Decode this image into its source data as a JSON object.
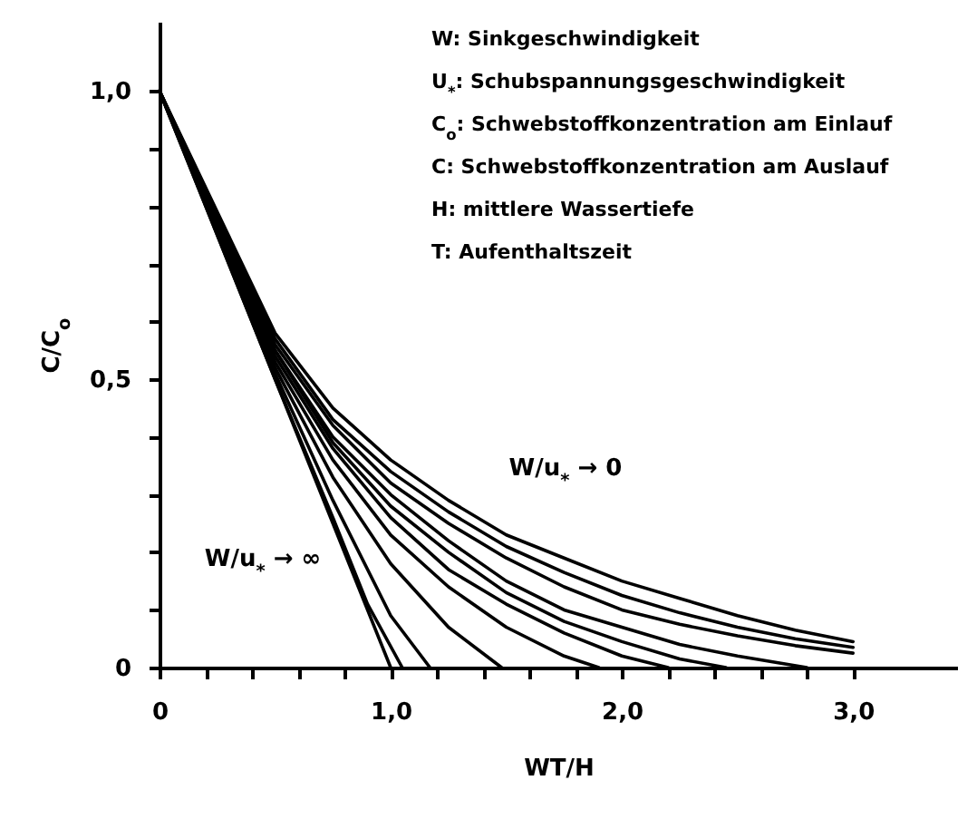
{
  "chart_data": {
    "type": "line",
    "xlabel": "WT/H",
    "ylabel": "C/C$_{o}$",
    "xlim": [
      0,
      3.45
    ],
    "ylim": [
      0,
      1.12
    ],
    "xticks": [
      {
        "value": 0,
        "label": "0"
      },
      {
        "value": 0.2,
        "label": null
      },
      {
        "value": 0.4,
        "label": null
      },
      {
        "value": 0.6,
        "label": null
      },
      {
        "value": 0.8,
        "label": null
      },
      {
        "value": 1.0,
        "label": "1,0"
      },
      {
        "value": 1.2,
        "label": null
      },
      {
        "value": 1.4,
        "label": null
      },
      {
        "value": 1.6,
        "label": null
      },
      {
        "value": 1.8,
        "label": null
      },
      {
        "value": 2.0,
        "label": "2,0"
      },
      {
        "value": 2.2,
        "label": null
      },
      {
        "value": 2.4,
        "label": null
      },
      {
        "value": 2.6,
        "label": null
      },
      {
        "value": 2.8,
        "label": null
      },
      {
        "value": 3.0,
        "label": "3,0"
      }
    ],
    "yticks": [
      {
        "value": 0,
        "label": "0"
      },
      {
        "value": 0.1,
        "label": null
      },
      {
        "value": 0.2,
        "label": null
      },
      {
        "value": 0.3,
        "label": null
      },
      {
        "value": 0.4,
        "label": null
      },
      {
        "value": 0.5,
        "label": "0,5"
      },
      {
        "value": 0.6,
        "label": null
      },
      {
        "value": 0.7,
        "label": null
      },
      {
        "value": 0.8,
        "label": null
      },
      {
        "value": 0.9,
        "label": null
      },
      {
        "value": 1.0,
        "label": "1,0"
      }
    ],
    "grid": false,
    "marker": "none",
    "line_style": "solid",
    "series": [
      {
        "color": "#000000",
        "x": [
          0,
          1.0
        ],
        "values": [
          1,
          0
        ]
      },
      {
        "color": "#000000",
        "x": [
          0,
          0.5,
          0.75,
          0.9,
          1.05
        ],
        "values": [
          1,
          0.5,
          0.26,
          0.11,
          0
        ]
      },
      {
        "color": "#000000",
        "x": [
          0,
          0.5,
          0.75,
          1.0,
          1.17
        ],
        "values": [
          1,
          0.51,
          0.29,
          0.09,
          0
        ]
      },
      {
        "color": "#000000",
        "x": [
          0,
          0.5,
          0.75,
          1.0,
          1.25,
          1.48
        ],
        "values": [
          1,
          0.52,
          0.33,
          0.18,
          0.07,
          0
        ]
      },
      {
        "color": "#000000",
        "x": [
          0,
          0.5,
          0.75,
          1.0,
          1.25,
          1.5,
          1.75,
          1.9
        ],
        "values": [
          1,
          0.53,
          0.36,
          0.23,
          0.14,
          0.07,
          0.02,
          0
        ]
      },
      {
        "color": "#000000",
        "x": [
          0,
          0.5,
          0.75,
          1.0,
          1.25,
          1.5,
          1.75,
          2.0,
          2.2
        ],
        "values": [
          1,
          0.54,
          0.38,
          0.26,
          0.17,
          0.11,
          0.06,
          0.02,
          0
        ]
      },
      {
        "color": "#000000",
        "x": [
          0,
          0.5,
          0.75,
          1.0,
          1.25,
          1.5,
          1.75,
          2.0,
          2.25,
          2.45
        ],
        "values": [
          1,
          0.55,
          0.39,
          0.28,
          0.2,
          0.13,
          0.08,
          0.045,
          0.015,
          0
        ]
      },
      {
        "color": "#000000",
        "x": [
          0,
          0.5,
          0.75,
          1.0,
          1.25,
          1.5,
          1.75,
          2.0,
          2.25,
          2.5,
          2.8
        ],
        "values": [
          1,
          0.55,
          0.4,
          0.3,
          0.22,
          0.15,
          0.1,
          0.07,
          0.04,
          0.02,
          0
        ]
      },
      {
        "color": "#000000",
        "x": [
          0,
          0.5,
          0.75,
          1.0,
          1.25,
          1.5,
          1.75,
          2.0,
          2.25,
          2.5,
          2.75,
          3.0
        ],
        "values": [
          1,
          0.56,
          0.42,
          0.32,
          0.25,
          0.19,
          0.14,
          0.1,
          0.075,
          0.055,
          0.038,
          0.025
        ]
      },
      {
        "color": "#000000",
        "x": [
          0,
          0.5,
          0.75,
          1.0,
          1.25,
          1.5,
          1.75,
          2.0,
          2.25,
          2.5,
          2.75,
          3.0
        ],
        "values": [
          1,
          0.57,
          0.43,
          0.34,
          0.27,
          0.21,
          0.165,
          0.125,
          0.095,
          0.07,
          0.05,
          0.035
        ]
      },
      {
        "color": "#000000",
        "x": [
          0,
          0.5,
          0.75,
          1.0,
          1.25,
          1.5,
          1.75,
          2.0,
          2.25,
          2.5,
          2.75,
          3.0
        ],
        "values": [
          1,
          0.58,
          0.45,
          0.36,
          0.29,
          0.23,
          0.19,
          0.15,
          0.12,
          0.09,
          0.065,
          0.045
        ]
      }
    ],
    "annotations": [
      "W:  Sinkgeschwindigkeit",
      "U$_{*}$: Schubspannungsgeschwindigkeit",
      "C$_{o}$: Schwebstoffkonzentration am Einlauf",
      "C:  Schwebstoffkonzentration am Auslauf",
      "H:  mittlere Wassertiefe",
      "T:  Aufenthaltszeit",
      "W/u$_{*}$ → 0",
      "W/u$_{*}$ → ∞"
    ]
  }
}
